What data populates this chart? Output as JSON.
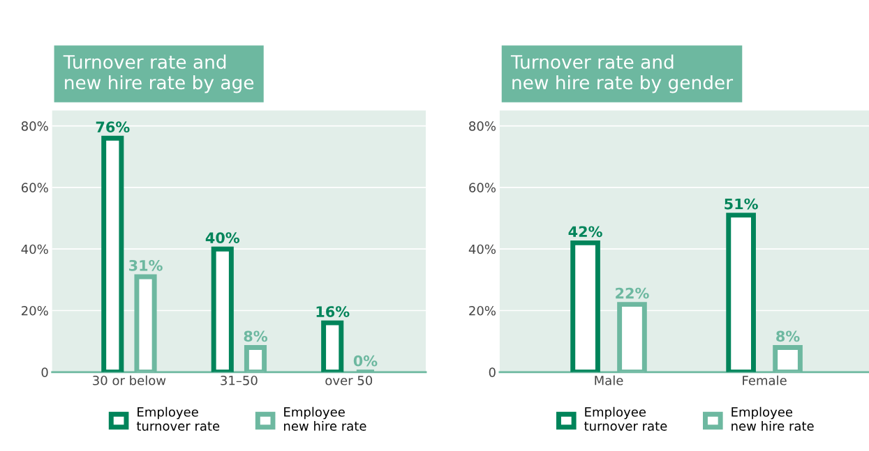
{
  "chart_data": [
    {
      "type": "bar",
      "title": "Turnover rate and\nnew hire rate by age",
      "categories": [
        "30 or below",
        "31–50",
        "over 50"
      ],
      "series": [
        {
          "name": "Employee\nturnover rate",
          "color": "#00845a",
          "values": [
            76,
            40,
            16
          ],
          "value_labels": [
            "76%",
            "40%",
            "16%"
          ]
        },
        {
          "name": "Employee\nnew hire rate",
          "color": "#6db8a0",
          "values": [
            31,
            8,
            0
          ],
          "value_labels": [
            "31%",
            "8%",
            "0%"
          ]
        }
      ],
      "ylim": [
        0,
        85
      ],
      "yticks": [
        {
          "value": 0,
          "label": "0"
        },
        {
          "value": 20,
          "label": "20%"
        },
        {
          "value": 40,
          "label": "40%"
        },
        {
          "value": 60,
          "label": "60%"
        },
        {
          "value": 80,
          "label": "80%"
        }
      ],
      "grid": "y",
      "legend": "bottom"
    },
    {
      "type": "bar",
      "title": "Turnover rate and\nnew hire rate by gender",
      "categories": [
        "Male",
        "Female"
      ],
      "series": [
        {
          "name": "Employee\nturnover rate",
          "color": "#00845a",
          "values": [
            42,
            51
          ],
          "value_labels": [
            "42%",
            "51%"
          ]
        },
        {
          "name": "Employee\nnew hire rate",
          "color": "#6db8a0",
          "values": [
            22,
            8
          ],
          "value_labels": [
            "22%",
            "8%"
          ]
        }
      ],
      "ylim": [
        0,
        85
      ],
      "yticks": [
        {
          "value": 0,
          "label": "0"
        },
        {
          "value": 20,
          "label": "20%"
        },
        {
          "value": 40,
          "label": "40%"
        },
        {
          "value": 60,
          "label": "60%"
        },
        {
          "value": 80,
          "label": "80%"
        }
      ],
      "grid": "y",
      "legend": "bottom"
    }
  ]
}
